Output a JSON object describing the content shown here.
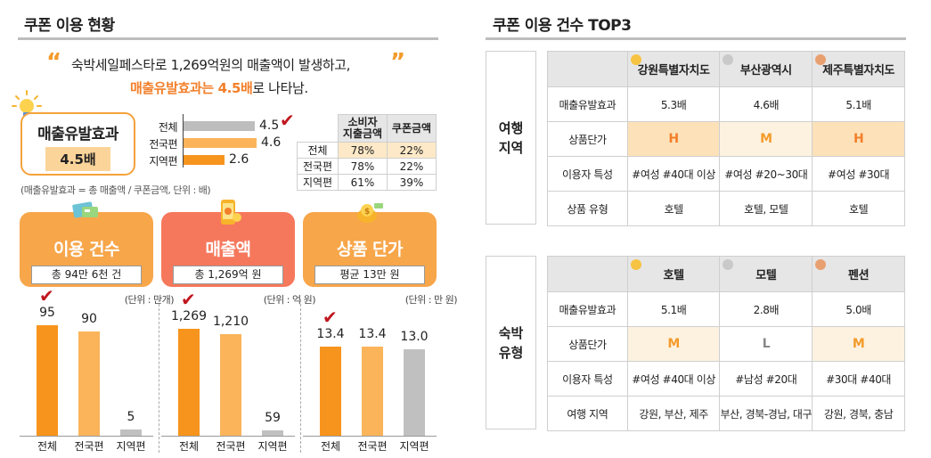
{
  "left": {
    "section_title": "쿠폰 이용 현황",
    "quote_line1": "숙박세일페스타로 1,269억원의 매출액이 발생하고,",
    "quote_line2_accent": "매출유발효과는 4.5배",
    "quote_line2_rest": "로 나타남.",
    "effect_title": "매출유발효과",
    "effect_value": "4.5배",
    "formula_note": "(매출유발효과 = 총 매출액 / 쿠폰금액, 단위 : 배)",
    "mini_bars": [
      {
        "label": "전체",
        "value": 4.5,
        "value_text": "4.5"
      },
      {
        "label": "전국편",
        "value": 4.6,
        "value_text": "4.6"
      },
      {
        "label": "지역편",
        "value": 2.6,
        "value_text": "2.6"
      }
    ],
    "small_table": {
      "headers": [
        "",
        "소비자\n지출금액",
        "쿠폰금액"
      ],
      "rows": [
        [
          "전체",
          "78%",
          "22%"
        ],
        [
          "전국편",
          "78%",
          "22%"
        ],
        [
          "지역편",
          "61%",
          "39%"
        ]
      ]
    },
    "cards": [
      {
        "title": "이용 건수",
        "pill": "총 94만 6천 건",
        "unit": "(단위 : 만개)",
        "color": "#f7a64a"
      },
      {
        "title": "매출액",
        "pill": "총 1,269억 원",
        "unit": "(단위 : 억 원)",
        "color": "#f6785c"
      },
      {
        "title": "상품 단가",
        "pill": "평균 13만 원",
        "unit": "(단위 : 만 원)",
        "color": "#f7a64a"
      }
    ]
  },
  "chart_data": [
    {
      "type": "bar",
      "categories": [
        "전체",
        "전국편",
        "지역편"
      ],
      "values": [
        95,
        90,
        5
      ],
      "value_labels": [
        "95",
        "90",
        "5"
      ],
      "ylabel": "(단위 : 만개)",
      "ylim": [
        0,
        100
      ],
      "colors": [
        "#f7941d",
        "#fbb45a",
        "#c0c0c0"
      ]
    },
    {
      "type": "bar",
      "categories": [
        "전체",
        "전국편",
        "지역편"
      ],
      "values": [
        1269,
        1210,
        59
      ],
      "value_labels": [
        "1,269",
        "1,210",
        "59"
      ],
      "ylabel": "(단위 : 억 원)",
      "ylim": [
        0,
        1380
      ],
      "colors": [
        "#f7941d",
        "#fbb45a",
        "#c0c0c0"
      ]
    },
    {
      "type": "bar",
      "categories": [
        "전체",
        "전국편",
        "지역편"
      ],
      "values": [
        13.4,
        13.4,
        13.0
      ],
      "value_labels": [
        "13.4",
        "13.4",
        "13.0"
      ],
      "ylabel": "(단위 : 만 원)",
      "ylim": [
        0,
        17.5
      ],
      "colors": [
        "#f7941d",
        "#fbb45a",
        "#c0c0c0"
      ]
    }
  ],
  "right": {
    "section_title": "쿠폰 이용 건수 TOP3",
    "groups": [
      {
        "label": "여행\n지역",
        "columns": [
          "강원특별자치도",
          "부산광역시",
          "제주특별자치도"
        ],
        "medal_colors": [
          "#f6c343",
          "#c9c9c9",
          "#e8a070"
        ],
        "rows": [
          {
            "head": "매출유발효과",
            "cells": [
              "5.3배",
              "4.6배",
              "5.1배"
            ]
          },
          {
            "head": "상품단가",
            "cells": [
              "H",
              "M",
              "H"
            ],
            "grades": [
              "hi",
              "mid",
              "hi"
            ]
          },
          {
            "head": "이용자 특성",
            "cells": [
              "#여성 #40대 이상",
              "#여성 #20~30대",
              "#여성 #30대"
            ]
          },
          {
            "head": "상품 유형",
            "cells": [
              "호텔",
              "호텔, 모텔",
              "호텔"
            ]
          }
        ]
      },
      {
        "label": "숙박\n유형",
        "columns": [
          "호텔",
          "모텔",
          "펜션"
        ],
        "medal_colors": [
          "#f6c343",
          "#c9c9c9",
          "#e8a070"
        ],
        "rows": [
          {
            "head": "매출유발효과",
            "cells": [
              "5.1배",
              "2.8배",
              "5.0배"
            ]
          },
          {
            "head": "상품단가",
            "cells": [
              "M",
              "L",
              "M"
            ],
            "grades": [
              "mid",
              "low",
              "mid"
            ]
          },
          {
            "head": "이용자 특성",
            "cells": [
              "#여성 #40대 이상",
              "#남성 #20대",
              "#30대 #40대"
            ]
          },
          {
            "head": "여행 지역",
            "cells": [
              "강원, 부산, 제주",
              "부산, 경북-경남, 대구",
              "강원, 경북, 충남"
            ]
          }
        ]
      }
    ]
  }
}
